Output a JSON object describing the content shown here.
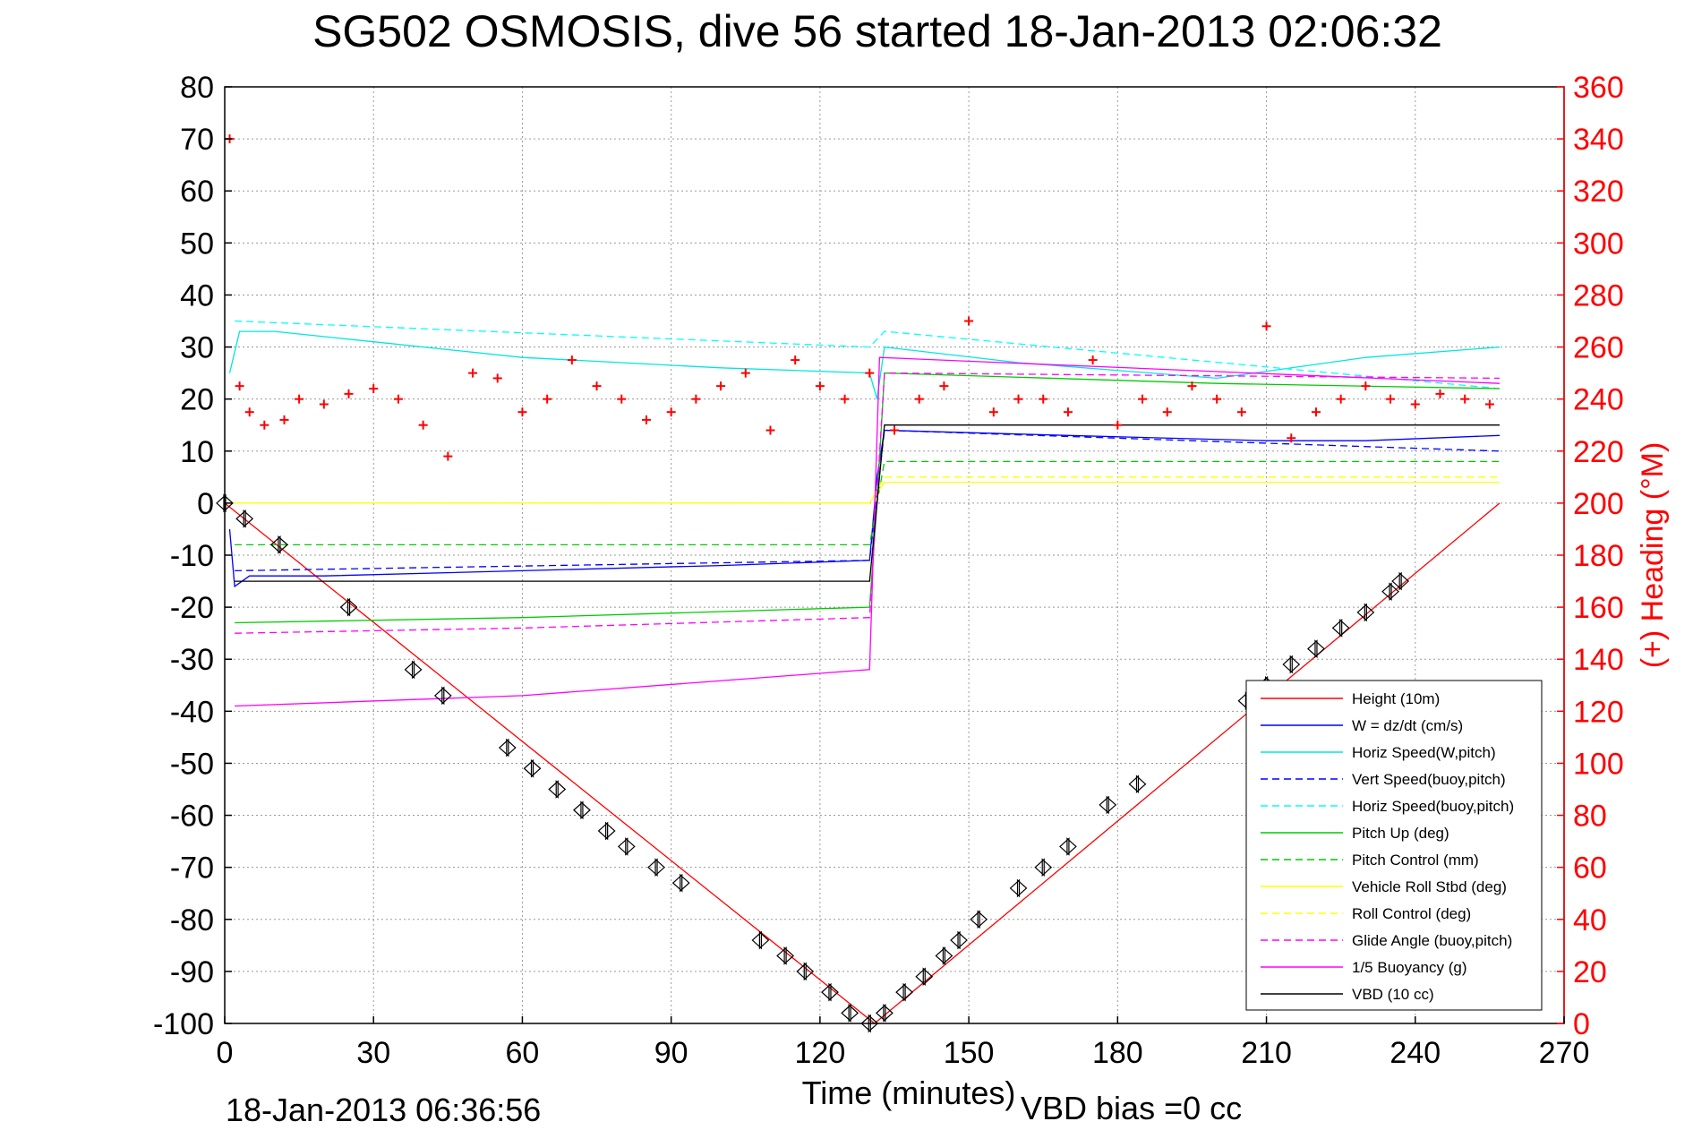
{
  "chart_data": {
    "type": "line",
    "title": "SG502 OSMOSIS, dive 56 started 18-Jan-2013 02:06:32",
    "xlabel": "Time (minutes)",
    "ylabel_right": "(+) Heading (°M)",
    "footer_left": "18-Jan-2013 06:36:56",
    "footer_right": "VBD bias =0 cc",
    "xlim": [
      0,
      270
    ],
    "ylim": [
      -100,
      80
    ],
    "ylim_right": [
      0,
      360
    ],
    "xticks": [
      "0",
      "30",
      "60",
      "90",
      "120",
      "150",
      "180",
      "210",
      "240",
      "270"
    ],
    "yticks_left": [
      "80",
      "70",
      "60",
      "50",
      "40",
      "30",
      "20",
      "10",
      "0",
      "-10",
      "-20",
      "-30",
      "-40",
      "-50",
      "-60",
      "-70",
      "-80",
      "-90",
      "-100"
    ],
    "yticks_right": [
      "360",
      "340",
      "320",
      "300",
      "280",
      "260",
      "240",
      "220",
      "200",
      "180",
      "160",
      "140",
      "120",
      "100",
      "80",
      "60",
      "40",
      "20",
      "0"
    ],
    "grid": true,
    "legend_position": "lower-right",
    "series": [
      {
        "name": "Height (10m)",
        "color": "#ff0000",
        "style": "solid",
        "x": [
          0,
          131,
          257
        ],
        "y": [
          0,
          -100,
          0
        ]
      },
      {
        "name": "W = dz/dt (cm/s)",
        "color": "#0000ff",
        "style": "solid",
        "x": [
          1,
          2,
          5,
          20,
          60,
          100,
          130,
          131.5,
          133,
          170,
          210,
          230,
          257
        ],
        "y": [
          -5,
          -16,
          -14,
          -14,
          -13,
          -12,
          -11,
          5,
          14,
          13,
          12,
          12,
          13
        ]
      },
      {
        "name": "Horiz Speed(W,pitch)",
        "color": "#00e5e5",
        "style": "solid",
        "x": [
          1,
          3,
          10,
          30,
          60,
          100,
          130,
          131.5,
          133,
          160,
          200,
          230,
          257
        ],
        "y": [
          25,
          33,
          33,
          31,
          28,
          26,
          25,
          20,
          30,
          27,
          24,
          28,
          30
        ]
      },
      {
        "name": "Vert Speed(buoy,pitch)",
        "color": "#0000ff",
        "style": "dashed",
        "x": [
          2,
          130,
          133,
          257
        ],
        "y": [
          -13,
          -11,
          14,
          10
        ]
      },
      {
        "name": "Horiz Speed(buoy,pitch)",
        "color": "#00ffff",
        "style": "dashed",
        "x": [
          2,
          130,
          133,
          257
        ],
        "y": [
          35,
          30,
          33,
          22
        ]
      },
      {
        "name": "Pitch Up (deg)",
        "color": "#00cc00",
        "style": "solid",
        "x": [
          2,
          60,
          130,
          131.5,
          133,
          200,
          257
        ],
        "y": [
          -23,
          -22,
          -20,
          0,
          25,
          23,
          22
        ]
      },
      {
        "name": "Pitch Control (mm)",
        "color": "#00cc00",
        "style": "dashed",
        "x": [
          2,
          130,
          133,
          257
        ],
        "y": [
          -8,
          -8,
          8,
          8
        ]
      },
      {
        "name": "Vehicle Roll Stbd (deg)",
        "color": "#ffff00",
        "style": "solid",
        "x": [
          0,
          10,
          50,
          100,
          130,
          133,
          180,
          257
        ],
        "y": [
          0,
          0,
          0,
          0,
          0,
          4,
          4,
          4
        ]
      },
      {
        "name": "Roll Control (deg)",
        "color": "#ffff00",
        "style": "dashed",
        "x": [
          0,
          130,
          133,
          257
        ],
        "y": [
          0,
          0,
          5,
          5
        ]
      },
      {
        "name": "Glide Angle (buoy,pitch)",
        "color": "#ff00ff",
        "style": "dashed",
        "x": [
          2,
          60,
          130,
          133,
          257
        ],
        "y": [
          -25,
          -24,
          -22,
          25,
          24
        ]
      },
      {
        "name": "1/5 Buoyancy (g)",
        "color": "#ff00ff",
        "style": "solid",
        "x": [
          2,
          60,
          130,
          132,
          257
        ],
        "y": [
          -39,
          -37,
          -32,
          28,
          23
        ]
      },
      {
        "name": "VBD (10 cc)",
        "color": "#000000",
        "style": "solid",
        "x": [
          2,
          130,
          133,
          257
        ],
        "y": [
          -15,
          -15,
          15,
          15
        ]
      },
      {
        "name": "Heading",
        "color": "#ff0000",
        "style": "markers",
        "axis": "right",
        "x": [
          1,
          3,
          5,
          8,
          12,
          15,
          20,
          25,
          30,
          35,
          40,
          45,
          50,
          55,
          60,
          65,
          70,
          75,
          80,
          85,
          90,
          95,
          100,
          105,
          110,
          115,
          120,
          125,
          130,
          135,
          140,
          145,
          150,
          155,
          160,
          165,
          170,
          175,
          180,
          185,
          190,
          195,
          200,
          205,
          210,
          215,
          220,
          225,
          230,
          235,
          240,
          245,
          250,
          255
        ],
        "y": [
          340,
          245,
          235,
          230,
          232,
          240,
          238,
          242,
          244,
          240,
          230,
          218,
          250,
          248,
          235,
          240,
          255,
          245,
          240,
          232,
          235,
          240,
          245,
          250,
          228,
          255,
          245,
          240,
          250,
          228,
          240,
          245,
          270,
          235,
          240,
          240,
          235,
          255,
          230,
          240,
          235,
          245,
          240,
          235,
          268,
          225,
          235,
          240,
          245,
          240,
          238,
          242,
          240,
          238
        ]
      }
    ],
    "vbd_markers": {
      "x": [
        0,
        4,
        11,
        25,
        38,
        44,
        57,
        62,
        67,
        72,
        77,
        81,
        87,
        92,
        108,
        113,
        117,
        122,
        126,
        130,
        133,
        137,
        141,
        145,
        148,
        152,
        160,
        165,
        170,
        178,
        184,
        206,
        210,
        215,
        220,
        225,
        230,
        235,
        237
      ],
      "y": [
        0,
        -3,
        -8,
        -20,
        -32,
        -37,
        -47,
        -51,
        -55,
        -59,
        -63,
        -66,
        -70,
        -73,
        -84,
        -87,
        -90,
        -94,
        -98,
        -100,
        -98,
        -94,
        -91,
        -87,
        -84,
        -80,
        -74,
        -70,
        -66,
        -58,
        -54,
        -38,
        -35,
        -31,
        -28,
        -24,
        -21,
        -17,
        -15
      ]
    }
  }
}
